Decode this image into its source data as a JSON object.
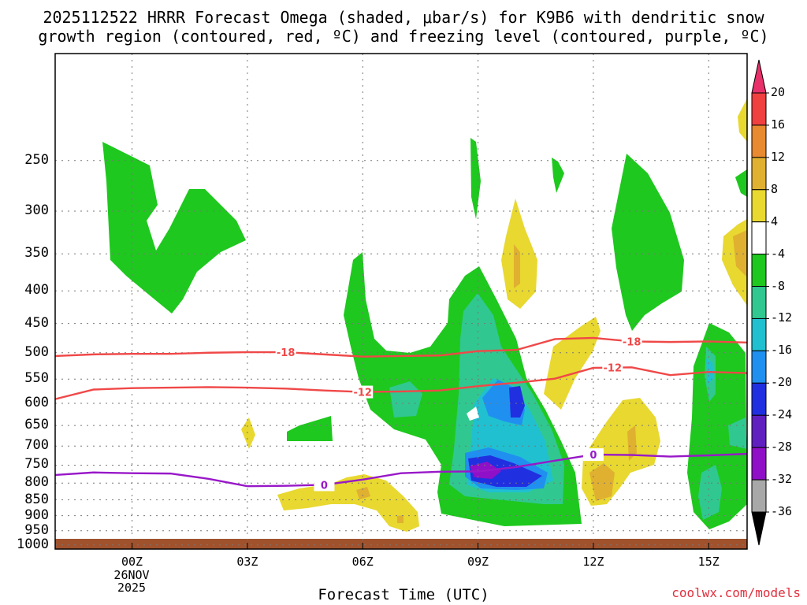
{
  "header": {
    "title_line1": "2025112522 HRRR Forecast Omega (shaded, μbar/s) for K9B6 with dendritic snow",
    "title_line2": "growth region (contoured, red, ºC) and freezing level (contoured, purple, ºC)"
  },
  "footer": {
    "xaxis_title": "Forecast Time (UTC)",
    "credit": "coolwx.com/models",
    "date_line1": "26NOV",
    "date_line2": "2025"
  },
  "chart_data": {
    "type": "heatmap",
    "title": "2025112522 HRRR Forecast Omega (shaded, μbar/s) for K9B6 with dendritic snow growth region (contoured, red, ºC) and freezing level (contoured, purple, ºC)",
    "xlabel": "Forecast Time (UTC)",
    "ylabel": "",
    "x_ticks": [
      "00Z",
      "03Z",
      "06Z",
      "09Z",
      "12Z",
      "15Z"
    ],
    "x_tick_hours": [
      0,
      3,
      6,
      9,
      12,
      15
    ],
    "xlim_hours": [
      -2,
      16
    ],
    "y_ticks": [
      250,
      300,
      350,
      400,
      450,
      500,
      550,
      600,
      650,
      700,
      750,
      800,
      850,
      900,
      950,
      1000
    ],
    "y_tick_labels": [
      "250",
      "300",
      "350",
      "400",
      "450",
      "500",
      "550",
      "600",
      "650",
      "700",
      "750",
      "800",
      "850",
      "900",
      "950",
      "1000"
    ],
    "ylim_hpa": [
      1015,
      170
    ],
    "grid": true,
    "legend_placement": "right colorbar",
    "colorbar": {
      "labels": [
        "20",
        "16",
        "12",
        "8",
        "4",
        "-4",
        "-8",
        "-12",
        "-16",
        "-20",
        "-24",
        "-28",
        "-32",
        "-36"
      ],
      "boundaries": [
        20,
        16,
        12,
        8,
        4,
        -4,
        -8,
        -12,
        -16,
        -20,
        -24,
        -28,
        -32,
        -36
      ],
      "colors": [
        "#e8306a",
        "#f04040",
        "#e88a30",
        "#e0b030",
        "#e8d830",
        "#ffffff",
        "#1ec81e",
        "#30c890",
        "#20c0d0",
        "#2090f0",
        "#2030e0",
        "#6020c0",
        "#9010c8",
        "#a8a8a8",
        "#000000"
      ]
    },
    "contours": [
      {
        "name": "-18",
        "color": "#f04848",
        "hours": [
          -2,
          -1,
          0,
          1,
          2,
          3,
          4,
          5,
          6,
          7,
          8,
          9,
          10,
          11,
          12,
          13,
          14,
          15,
          16
        ],
        "pressure": [
          506,
          503,
          502,
          502,
          500,
          499,
          499,
          503,
          507,
          506,
          505,
          497,
          495,
          476,
          474,
          480,
          481,
          480,
          482
        ]
      },
      {
        "name": "-12",
        "color": "#f04848",
        "hours": [
          -2,
          -1,
          0,
          1,
          2,
          3,
          4,
          5,
          6,
          7,
          8,
          9,
          10,
          11,
          12,
          13,
          14,
          15,
          16
        ],
        "pressure": [
          591,
          571,
          568,
          567,
          566,
          567,
          569,
          573,
          576,
          575,
          573,
          564,
          557,
          549,
          528,
          527,
          542,
          536,
          538
        ]
      },
      {
        "name": "0",
        "color": "#9818c8",
        "hours": [
          -2,
          -1,
          0,
          1,
          2,
          3,
          4,
          5,
          6,
          7,
          8,
          9,
          10,
          11,
          12,
          13,
          14,
          15,
          16
        ],
        "pressure": [
          777,
          770,
          772,
          773,
          788,
          809,
          808,
          805,
          790,
          772,
          768,
          767,
          755,
          738,
          722,
          723,
          727,
          724,
          720
        ]
      }
    ]
  }
}
